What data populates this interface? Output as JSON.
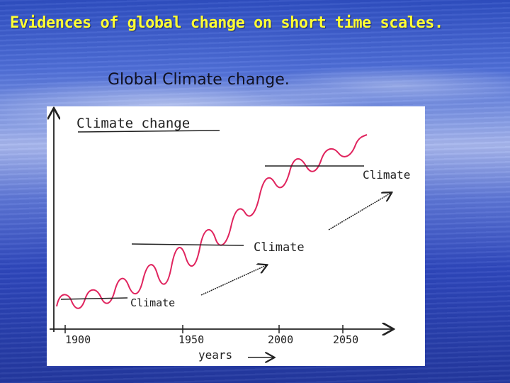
{
  "slide": {
    "title": "Evidences of global change on short time scales.",
    "subtitle": "Global Climate change."
  },
  "diagram": {
    "y_axis_label": "Climate change",
    "x_axis_label": "years",
    "x_ticks": [
      "1900",
      "1950",
      "2000",
      "2050"
    ],
    "climate_labels": [
      "Climate",
      "Climate",
      "Climate"
    ],
    "colors": {
      "title": "#ffff33",
      "ink": "#222222",
      "panel": "#ffffff"
    }
  }
}
